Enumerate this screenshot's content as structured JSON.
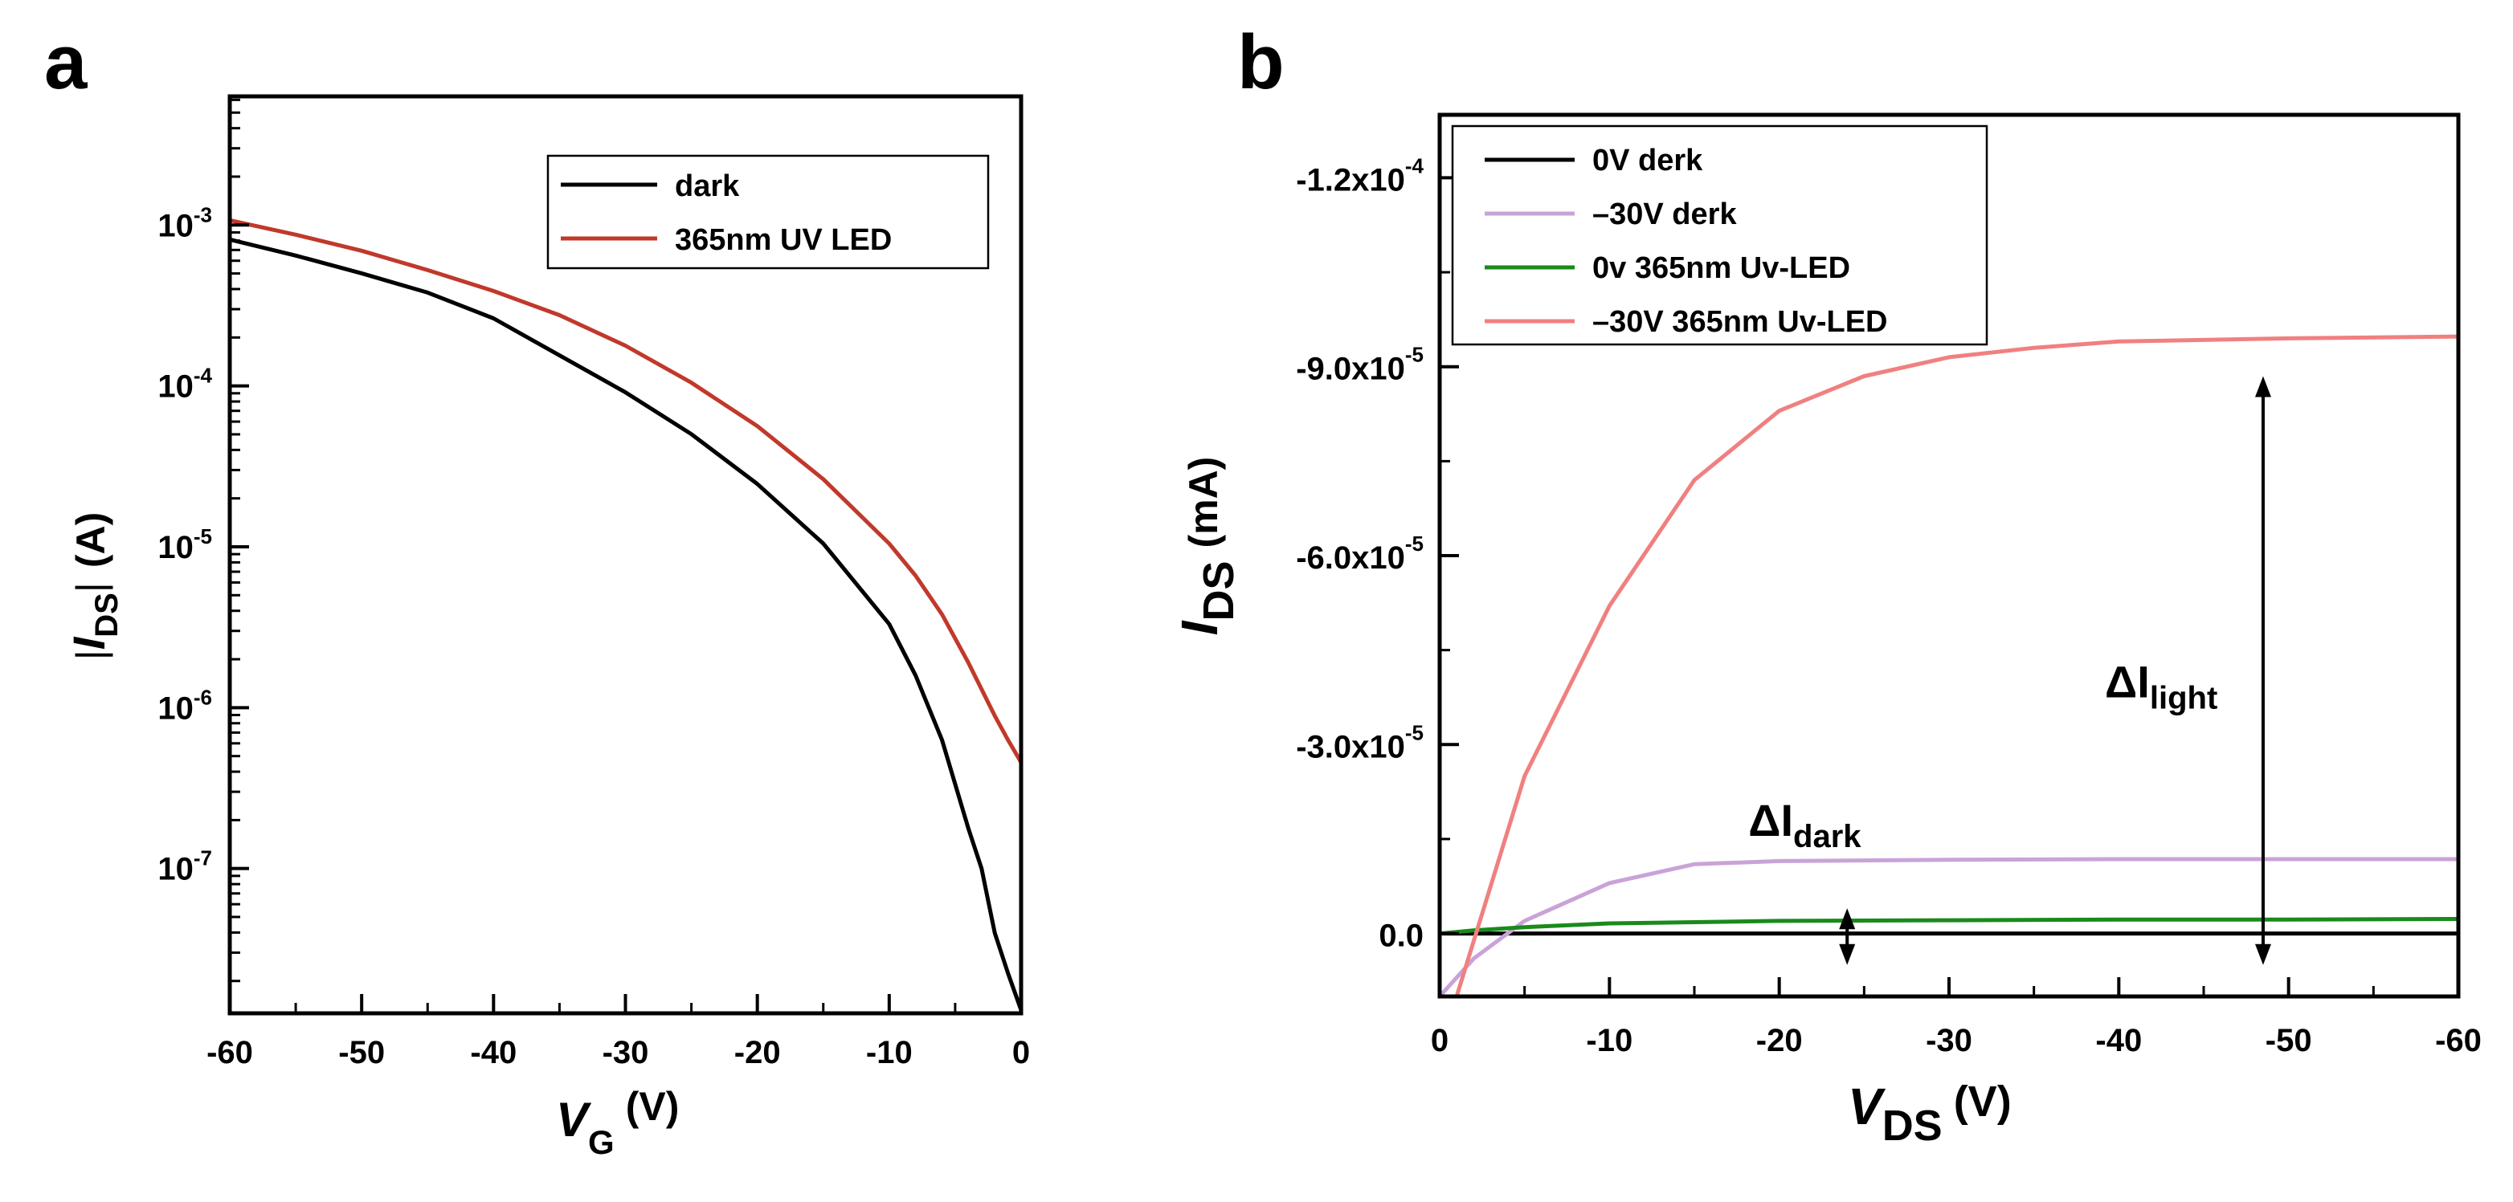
{
  "chart_data": [
    {
      "panel": "a",
      "type": "line",
      "xlabel": {
        "main": "V",
        "sub": "G",
        "unit": "(V)"
      },
      "ylabel": {
        "pre": "|",
        "main": "I",
        "sub": "DS",
        "post": "|",
        "unit": "(A)"
      },
      "xlim": [
        -60,
        0
      ],
      "ylim_log10": [
        -7.9,
        -2.2
      ],
      "yscale": "log",
      "x_ticks": [
        -60,
        -50,
        -40,
        -30,
        -20,
        -10,
        0
      ],
      "x_tick_labels": [
        "-60",
        "-50",
        "-40",
        "-30",
        "-20",
        "-10",
        "0"
      ],
      "y_ticks": [
        {
          "exp": -3,
          "base": "10",
          "sup": "-3"
        },
        {
          "exp": -4,
          "base": "10",
          "sup": "-4"
        },
        {
          "exp": -5,
          "base": "10",
          "sup": "-5"
        },
        {
          "exp": -6,
          "base": "10",
          "sup": "-6"
        },
        {
          "exp": -7,
          "base": "10",
          "sup": "-7"
        }
      ],
      "series": [
        {
          "name": "dark",
          "color": "#000000",
          "x": [
            -60,
            -55,
            -50,
            -45,
            -40,
            -35,
            -30,
            -25,
            -20,
            -15,
            -10,
            -8,
            -6,
            -4,
            -3,
            -2,
            -1,
            0
          ],
          "log10_y": [
            -3.09,
            -3.19,
            -3.3,
            -3.42,
            -3.58,
            -3.81,
            -4.04,
            -4.3,
            -4.61,
            -4.98,
            -5.48,
            -5.8,
            -6.2,
            -6.75,
            -7.0,
            -7.4,
            -7.65,
            -7.88
          ]
        },
        {
          "name": "365nm UV LED",
          "color": "#c0392b",
          "x": [
            -60,
            -55,
            -50,
            -45,
            -40,
            -35,
            -30,
            -25,
            -20,
            -15,
            -10,
            -8,
            -6,
            -4,
            -2,
            -1,
            0
          ],
          "log10_y": [
            -2.97,
            -3.06,
            -3.16,
            -3.28,
            -3.41,
            -3.56,
            -3.75,
            -3.98,
            -4.25,
            -4.58,
            -4.98,
            -5.18,
            -5.42,
            -5.72,
            -6.05,
            -6.2,
            -6.34
          ]
        }
      ],
      "legend_position": "top-right"
    },
    {
      "panel": "b",
      "type": "line",
      "xlabel": {
        "main": "V",
        "sub": "DS",
        "unit": "(V)"
      },
      "ylabel": {
        "main": "I",
        "sub": "DS",
        "unit": "(mA)"
      },
      "xlim": [
        0,
        -60
      ],
      "ylim": [
        1e-05,
        -0.00013
      ],
      "x_ticks": [
        0,
        -10,
        -20,
        -30,
        -40,
        -50,
        -60
      ],
      "x_tick_labels": [
        "0",
        "-10",
        "-20",
        "-30",
        "-40",
        "-50",
        "-60"
      ],
      "y_ticks": [
        {
          "value": 0,
          "label": "0.0",
          "sup": ""
        },
        {
          "value": -3e-05,
          "label": "-3.0x10",
          "sup": "-5"
        },
        {
          "value": -6e-05,
          "label": "-6.0x10",
          "sup": "-5"
        },
        {
          "value": -9e-05,
          "label": "-9.0x10",
          "sup": "-5"
        },
        {
          "value": -0.00012,
          "label": "-1.2x10",
          "sup": "-4"
        }
      ],
      "series": [
        {
          "name": "0V derk",
          "color": "#000000",
          "x": [
            0,
            -60
          ],
          "y": [
            0,
            0
          ]
        },
        {
          "name": "–30V derk",
          "color": "#c9a3d8",
          "x": [
            0,
            -2,
            -5,
            -10,
            -15,
            -20,
            -30,
            -40,
            -50,
            -60
          ],
          "y": [
            1e-05,
            4e-06,
            -2e-06,
            -8e-06,
            -1.1e-05,
            -1.15e-05,
            -1.17e-05,
            -1.18e-05,
            -1.18e-05,
            -1.18e-05
          ]
        },
        {
          "name": "0v 365nm Uv-LED",
          "color": "#1a8a1a",
          "x": [
            0,
            -2,
            -5,
            -10,
            -20,
            -30,
            -40,
            -50,
            -60
          ],
          "y": [
            0,
            -5e-07,
            -1e-06,
            -1.6e-06,
            -2e-06,
            -2.1e-06,
            -2.2e-06,
            -2.2e-06,
            -2.3e-06
          ]
        },
        {
          "name": "–30V 365nm Uv-LED",
          "color": "#f08080",
          "x": [
            -1,
            -5,
            -10,
            -15,
            -20,
            -25,
            -30,
            -35,
            -40,
            -50,
            -60
          ],
          "y": [
            1e-05,
            -2.5e-05,
            -5.2e-05,
            -7.2e-05,
            -8.3e-05,
            -8.85e-05,
            -9.15e-05,
            -9.3e-05,
            -9.4e-05,
            -9.45e-05,
            -9.48e-05
          ]
        }
      ],
      "legend_position": "top-left",
      "annotations": [
        {
          "name": "delta-i-dark",
          "main": "ΔI",
          "sub": "dark",
          "arrow_x": -24,
          "arrow_y": [
            5e-06,
            -4e-06
          ],
          "label_x": -21.5,
          "label_y": -1.55e-05
        },
        {
          "name": "delta-i-light",
          "main": "ΔI",
          "sub": "light",
          "arrow_x": -48.5,
          "arrow_y": [
            5e-06,
            -8.85e-05
          ],
          "label_x": -42.5,
          "label_y": -3.75e-05
        }
      ]
    }
  ],
  "panels": {
    "a": "a",
    "b": "b"
  }
}
